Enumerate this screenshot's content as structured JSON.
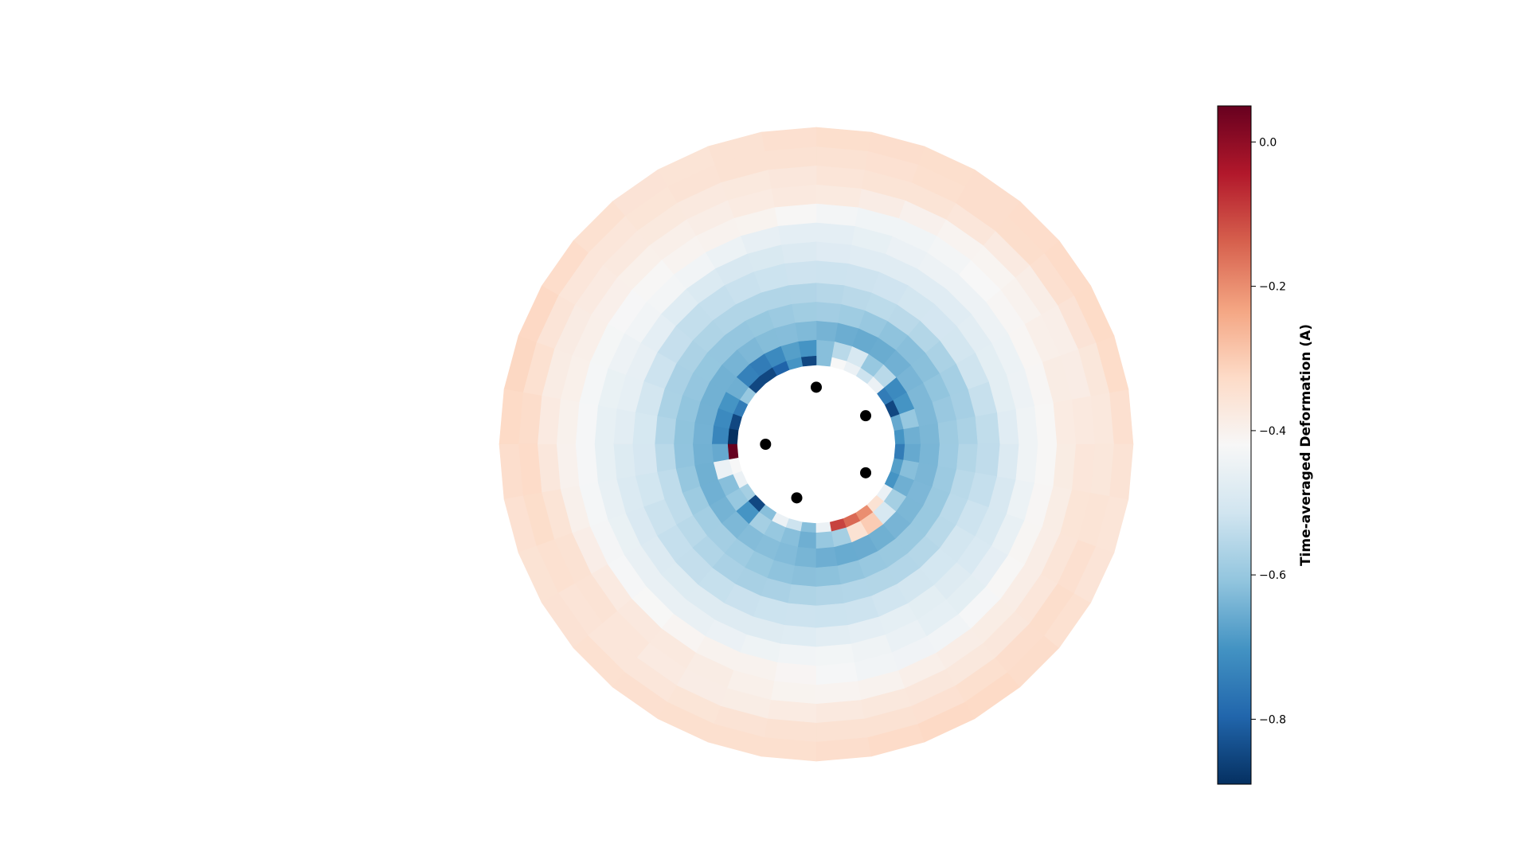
{
  "chart_data": {
    "type": "heatmap",
    "projection": "polar",
    "colormap": "RdBu_r",
    "colorbar": {
      "label": "Time-averaged Deformation (A)",
      "vmin": -0.89,
      "vmax": 0.05,
      "ticks": [
        0.0,
        -0.2,
        -0.4,
        -0.6,
        -0.8
      ],
      "tick_labels": [
        "0.0",
        "−0.2",
        "−0.4",
        "−0.6",
        "−0.8"
      ]
    },
    "grid": false,
    "n_angular_bins": 36,
    "radial_bin_edges": [
      0.25,
      0.28,
      0.33,
      0.39,
      0.45,
      0.51,
      0.58,
      0.64,
      0.7,
      0.76,
      0.82,
      0.88,
      0.94,
      1.0
    ],
    "ring_mean_values": [
      -0.62,
      -0.66,
      -0.64,
      -0.6,
      -0.56,
      -0.52,
      -0.48,
      -0.45,
      -0.42,
      -0.39,
      -0.37,
      -0.35,
      -0.34
    ],
    "inner_ring_values": [
      -0.7,
      -0.66,
      -0.85,
      -0.75,
      -0.45,
      -0.52,
      -0.45,
      -0.42,
      -0.62,
      -0.85,
      -0.7,
      -0.8,
      -0.85,
      -0.85,
      -0.6,
      -0.75,
      -0.85,
      -0.9,
      0.05,
      -0.42,
      -0.45,
      -0.58,
      -0.85,
      -0.62,
      -0.45,
      -0.52,
      -0.62,
      -0.45,
      -0.1,
      -0.15,
      -0.2,
      -0.35,
      -0.45,
      -0.7,
      -0.68,
      -0.75
    ],
    "second_ring_values": [
      -0.65,
      -0.6,
      -0.7,
      -0.72,
      -0.55,
      -0.6,
      -0.5,
      -0.55,
      -0.62,
      -0.7,
      -0.68,
      -0.72,
      -0.75,
      -0.74,
      -0.65,
      -0.7,
      -0.72,
      -0.73,
      -0.66,
      -0.45,
      -0.62,
      -0.6,
      -0.7,
      -0.58,
      -0.6,
      -0.62,
      -0.65,
      -0.6,
      -0.58,
      -0.35,
      -0.3,
      -0.5,
      -0.58,
      -0.65,
      -0.62,
      -0.66
    ],
    "markers": [
      {
        "theta_deg": 90,
        "r": 0.18
      },
      {
        "theta_deg": 30,
        "r": 0.18
      },
      {
        "theta_deg": 330,
        "r": 0.18
      },
      {
        "theta_deg": 250,
        "r": 0.18
      },
      {
        "theta_deg": 180,
        "r": 0.16
      }
    ]
  }
}
